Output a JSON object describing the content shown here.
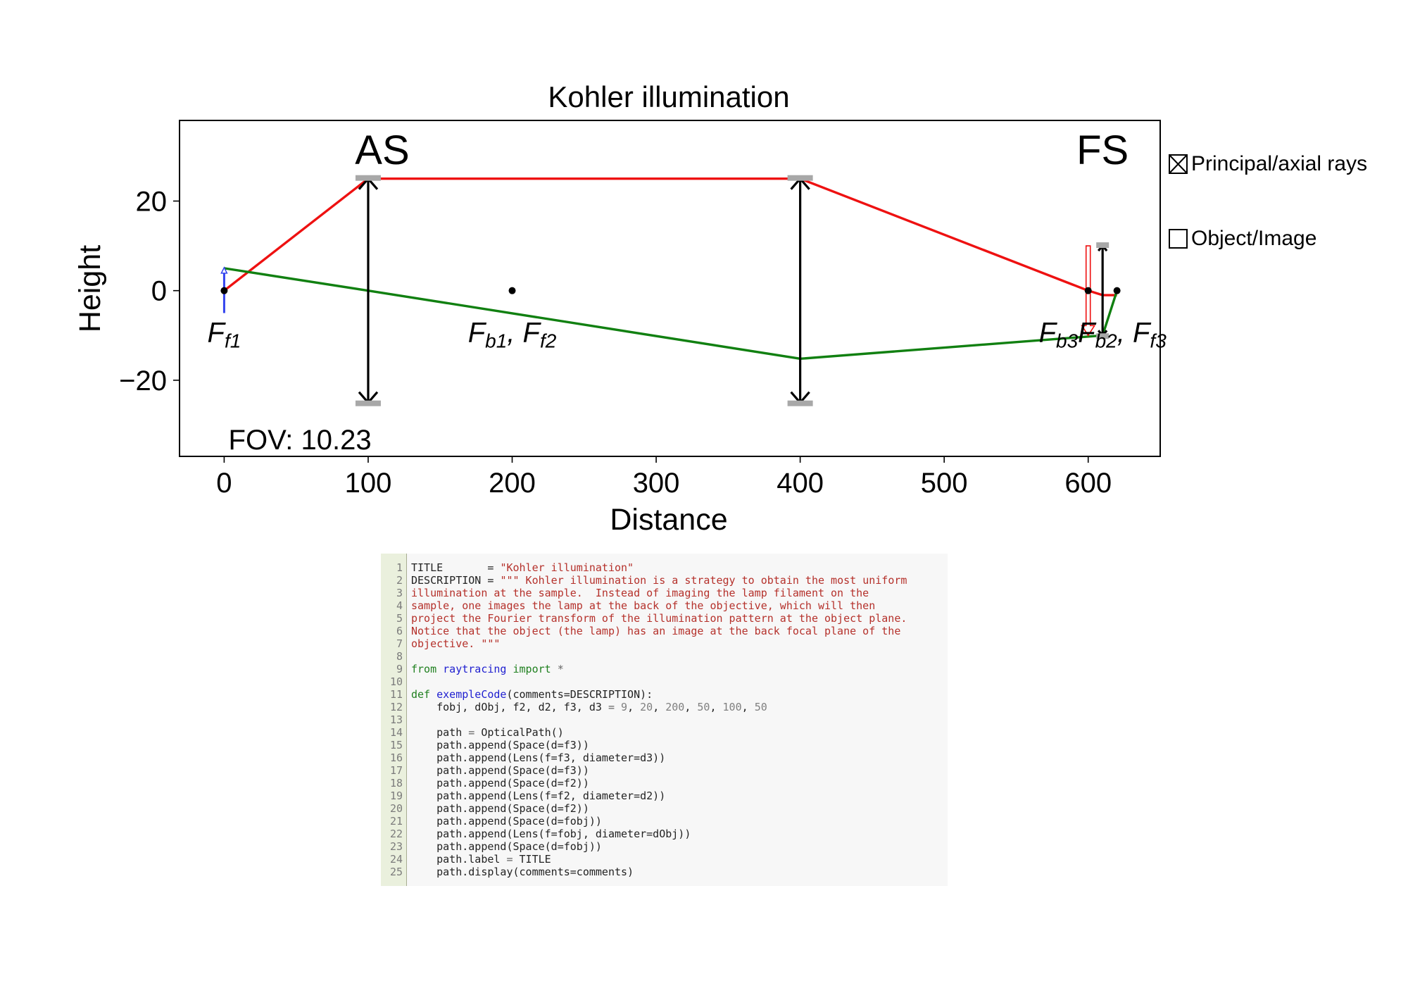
{
  "figure": {
    "title": "Kohler illumination",
    "xlabel": "Distance",
    "ylabel": "Height",
    "xlim": [
      -31,
      650
    ],
    "ylim": [
      -37,
      38
    ],
    "xticks": [
      {
        "v": 0,
        "t": "0"
      },
      {
        "v": 100,
        "t": "100"
      },
      {
        "v": 200,
        "t": "200"
      },
      {
        "v": 300,
        "t": "300"
      },
      {
        "v": 400,
        "t": "400"
      },
      {
        "v": 500,
        "t": "500"
      },
      {
        "v": 600,
        "t": "600"
      }
    ],
    "yticks": [
      {
        "v": 20,
        "t": "20"
      },
      {
        "v": 0,
        "t": "0"
      },
      {
        "v": -20,
        "t": "−20"
      }
    ],
    "fov_label": "FOV: 10.23",
    "stop_labels": [
      {
        "text": "AS",
        "x": 100
      },
      {
        "text": "FS",
        "x": 610
      }
    ],
    "lenses": [
      {
        "x": 100,
        "half_height": 25
      },
      {
        "x": 400,
        "half_height": 25
      },
      {
        "x": 610,
        "half_height": 10
      }
    ],
    "focal_labels": [
      {
        "x": 0,
        "parts": [
          [
            "F",
            ""
          ],
          [
            "f1",
            "sub"
          ]
        ]
      },
      {
        "x": 200,
        "parts": [
          [
            "F",
            ""
          ],
          [
            "b1",
            "sub"
          ],
          [
            ", F",
            ""
          ],
          [
            "f2",
            "sub"
          ]
        ]
      },
      {
        "x": 610,
        "parts": [
          [
            "F",
            ""
          ],
          [
            "b3",
            "sub"
          ],
          [
            "F",
            ""
          ],
          [
            "b2",
            "sub"
          ],
          [
            ", F",
            ""
          ],
          [
            "f3",
            "sub"
          ]
        ]
      }
    ],
    "focal_points": [
      [
        0,
        0
      ],
      [
        200,
        0
      ],
      [
        600,
        0
      ],
      [
        620,
        0
      ]
    ],
    "rays": [
      {
        "name": "axial",
        "color": "#ee1111",
        "points": [
          [
            0,
            0
          ],
          [
            100,
            25
          ],
          [
            400,
            25
          ],
          [
            600,
            0
          ],
          [
            610,
            -1
          ],
          [
            620,
            -1
          ]
        ]
      },
      {
        "name": "principal",
        "color": "#118011",
        "points": [
          [
            0,
            5
          ],
          [
            100,
            0
          ],
          [
            400,
            -15.2
          ],
          [
            610,
            -10
          ],
          [
            620,
            0
          ]
        ]
      }
    ],
    "object_arrow": {
      "x": 0,
      "from": -5,
      "to": 5,
      "color": "#3344ee"
    },
    "image_arrow": {
      "x": 600,
      "from": 10,
      "to": -10,
      "color": "#ee1111"
    },
    "legend": [
      {
        "label": "Principal/axial rays",
        "checked": true
      },
      {
        "label": "Object/Image",
        "checked": false
      }
    ]
  },
  "code": {
    "lines": [
      [
        [
          "TITLE       = ",
          ""
        ],
        [
          "\"Kohler illumination\"",
          "str"
        ]
      ],
      [
        [
          "DESCRIPTION = ",
          ""
        ],
        [
          "\"\"\" Kohler illumination is a strategy to obtain the most uniform",
          "str"
        ]
      ],
      [
        [
          "illumination at the sample.  Instead of imaging the lamp filament on the",
          "str"
        ]
      ],
      [
        [
          "sample, one images the lamp at the back of the objective, which will then",
          "str"
        ]
      ],
      [
        [
          "project the Fourier transform of the illumination pattern at the object plane.",
          "str"
        ]
      ],
      [
        [
          "Notice that the object (the lamp) has an image at the back focal plane of the",
          "str"
        ]
      ],
      [
        [
          "objective. \"\"\"",
          "str"
        ]
      ],
      [],
      [
        [
          "from ",
          "kw"
        ],
        [
          "raytracing ",
          "name"
        ],
        [
          "import ",
          "kw"
        ],
        [
          "*",
          "op"
        ]
      ],
      [],
      [
        [
          "def ",
          "kw"
        ],
        [
          "exempleCode",
          "name"
        ],
        [
          "(comments=DESCRIPTION):",
          ""
        ]
      ],
      [
        [
          "    fobj, dObj, f2, d2, f3, d3 ",
          ""
        ],
        [
          "= ",
          "op"
        ],
        [
          "9",
          "num"
        ],
        [
          ", ",
          ""
        ],
        [
          "20",
          "num"
        ],
        [
          ", ",
          ""
        ],
        [
          "200",
          "num"
        ],
        [
          ", ",
          ""
        ],
        [
          "50",
          "num"
        ],
        [
          ", ",
          ""
        ],
        [
          "100",
          "num"
        ],
        [
          ", ",
          ""
        ],
        [
          "50",
          "num"
        ]
      ],
      [],
      [
        [
          "    path ",
          ""
        ],
        [
          "= ",
          "op"
        ],
        [
          "OpticalPath()",
          ""
        ]
      ],
      [
        [
          "    path.append(Space(d=f3))",
          ""
        ]
      ],
      [
        [
          "    path.append(Lens(f=f3, diameter=d3))",
          ""
        ]
      ],
      [
        [
          "    path.append(Space(d=f3))",
          ""
        ]
      ],
      [
        [
          "    path.append(Space(d=f2))",
          ""
        ]
      ],
      [
        [
          "    path.append(Lens(f=f2, diameter=d2))",
          ""
        ]
      ],
      [
        [
          "    path.append(Space(d=f2))",
          ""
        ]
      ],
      [
        [
          "    path.append(Space(d=fobj))",
          ""
        ]
      ],
      [
        [
          "    path.append(Lens(f=fobj, diameter=dObj))",
          ""
        ]
      ],
      [
        [
          "    path.append(Space(d=fobj))",
          ""
        ]
      ],
      [
        [
          "    path.label ",
          ""
        ],
        [
          "= ",
          "op"
        ],
        [
          "TITLE",
          ""
        ]
      ],
      [
        [
          "    path.display(comments=comments)",
          ""
        ]
      ]
    ]
  }
}
